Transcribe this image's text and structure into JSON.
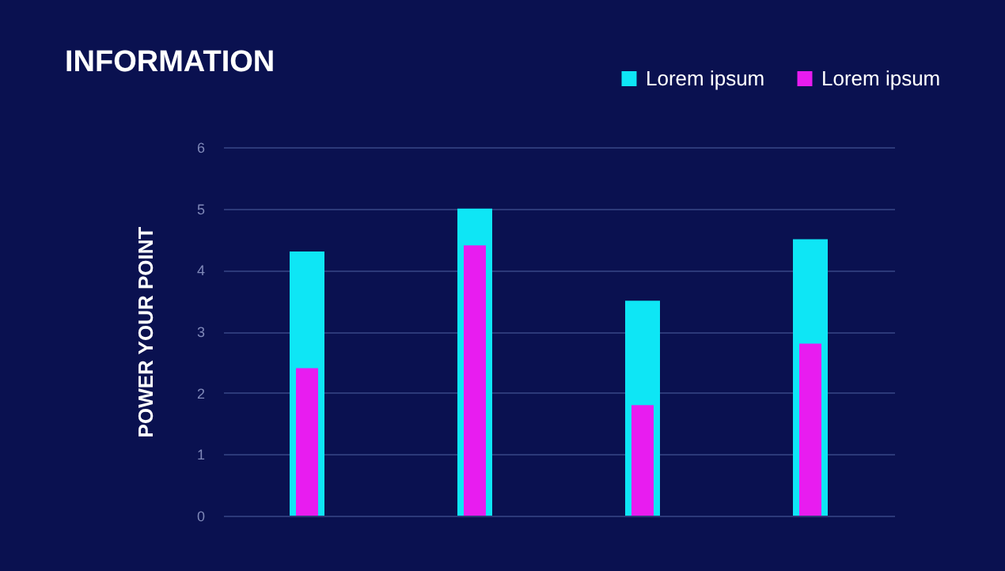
{
  "chart_data": {
    "type": "bar",
    "title": "INFORMATION",
    "ylabel": "POWER YOUR POINT",
    "categories": [
      null,
      null,
      null,
      null
    ],
    "series": [
      {
        "name": "Lorem ipsum",
        "color": "#0ee6f5",
        "values": [
          4.3,
          5.0,
          3.5,
          4.5
        ]
      },
      {
        "name": "Lorem ipsum",
        "color": "#e81cf0",
        "values": [
          2.4,
          4.4,
          1.8,
          2.8
        ]
      }
    ],
    "ylim": [
      0,
      6
    ],
    "yticks": [
      0,
      1,
      2,
      3,
      4,
      5,
      6
    ],
    "grid": "y",
    "legend": "top right",
    "tick_labels": "y"
  }
}
